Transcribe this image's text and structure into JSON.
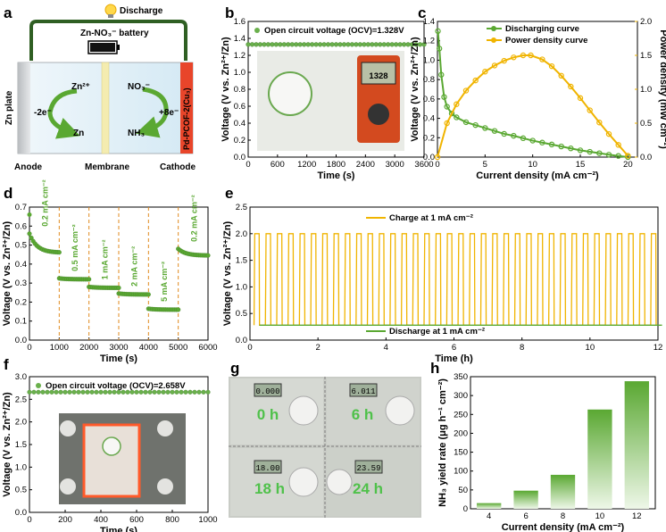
{
  "panels": {
    "a": "a",
    "b": "b",
    "c": "c",
    "d": "d",
    "e": "e",
    "f": "f",
    "g": "g",
    "h": "h"
  },
  "diagram_a": {
    "discharge": "Discharge",
    "battery": "Zn-NO₃⁻ battery",
    "zn_plate": "Zn plate",
    "zn2": "Zn²⁺",
    "zn": "Zn",
    "minus2e": "-2e⁻",
    "no3": "NO₃⁻",
    "nh3": "NH₃",
    "plus8e": "+8e⁻",
    "cathode_label": "Pd-PCOF-2(Cu₃)",
    "anode": "Anode",
    "membrane": "Membrane",
    "cathode": "Cathode"
  },
  "photo_g": {
    "t0": "0 h",
    "t6": "6 h",
    "t18": "18 h",
    "t24": "24 h",
    "meter0": "0.000",
    "meter6": "6.011",
    "meter18": "18.00",
    "meter24": "23.59"
  },
  "chart_data": [
    {
      "panel": "b",
      "type": "scatter",
      "title": "",
      "xlabel": "Time (s)",
      "ylabel": "Voltage (V vs. Zn²⁺/Zn)",
      "xlim": [
        0,
        3600
      ],
      "ylim": [
        0,
        1.6
      ],
      "xticks": [
        0,
        600,
        1200,
        1800,
        2400,
        3000,
        3600
      ],
      "yticks": [
        0.0,
        0.2,
        0.4,
        0.6,
        0.8,
        1.0,
        1.2,
        1.4,
        1.6
      ],
      "legend": "Open circuit voltage (OCV)=1.328V",
      "series": [
        {
          "name": "Open circuit voltage (OCV)=1.328V",
          "x_range": [
            0,
            3600
          ],
          "value": 1.328,
          "color": "#6ab04c"
        }
      ],
      "inset_photo_text": "1328"
    },
    {
      "panel": "c",
      "type": "line",
      "xlabel": "Current density (mA cm⁻²)",
      "ylabel": "Voltage (V vs. Zn²⁺/Zn)",
      "y2label": "Power density (mW cm⁻²)",
      "xlim": [
        0,
        21
      ],
      "ylim": [
        0,
        1.4
      ],
      "y2lim": [
        0,
        2.0
      ],
      "xticks": [
        0,
        5,
        10,
        15,
        20
      ],
      "yticks": [
        0.0,
        0.2,
        0.4,
        0.6,
        0.8,
        1.0,
        1.2,
        1.4
      ],
      "y2ticks": [
        0.0,
        0.5,
        1.0,
        1.5,
        2.0
      ],
      "legend": "top-right",
      "series": [
        {
          "name": "Discharging curve",
          "color": "#5aa832",
          "x": [
            0.05,
            0.2,
            0.4,
            0.7,
            1,
            1.5,
            2,
            3,
            4,
            5,
            6,
            7,
            8,
            9,
            10,
            11,
            12,
            13,
            14,
            15,
            16,
            17,
            18,
            19,
            20
          ],
          "y": [
            1.3,
            1.12,
            0.85,
            0.62,
            0.52,
            0.45,
            0.41,
            0.36,
            0.33,
            0.3,
            0.27,
            0.24,
            0.22,
            0.195,
            0.17,
            0.15,
            0.13,
            0.11,
            0.09,
            0.07,
            0.055,
            0.04,
            0.025,
            0.012,
            0.0
          ]
        },
        {
          "name": "Power density curve",
          "axis": "right",
          "color": "#f0b400",
          "x": [
            0,
            1,
            2,
            3,
            4,
            5,
            6,
            7,
            8,
            9,
            9.8,
            11,
            12,
            13,
            14,
            15,
            16,
            17,
            18,
            19,
            20
          ],
          "y": [
            0,
            0.5,
            0.78,
            0.98,
            1.13,
            1.26,
            1.35,
            1.42,
            1.47,
            1.5,
            1.5,
            1.44,
            1.34,
            1.2,
            1.04,
            0.87,
            0.69,
            0.51,
            0.34,
            0.18,
            0.02
          ]
        }
      ]
    },
    {
      "panel": "d",
      "type": "scatter",
      "xlabel": "Time (s)",
      "ylabel": "Voltage (V vs. Zn²⁺/Zn)",
      "xlim": [
        0,
        6000
      ],
      "ylim": [
        0,
        0.7
      ],
      "xticks": [
        0,
        1000,
        2000,
        3000,
        4000,
        5000,
        6000
      ],
      "yticks": [
        0.0,
        0.1,
        0.2,
        0.3,
        0.4,
        0.5,
        0.6,
        0.7
      ],
      "segments": [
        {
          "label": "0.2 mA cm⁻²",
          "t": [
            0,
            1000
          ],
          "start": 0.56,
          "end": 0.46
        },
        {
          "label": "0.5 mA cm⁻²",
          "t": [
            1000,
            2000
          ],
          "start": 0.325,
          "end": 0.32
        },
        {
          "label": "1 mA cm⁻²",
          "t": [
            2000,
            3000
          ],
          "start": 0.28,
          "end": 0.275
        },
        {
          "label": "2 mA cm⁻²",
          "t": [
            3000,
            4000
          ],
          "start": 0.245,
          "end": 0.24
        },
        {
          "label": "5 mA cm⁻²",
          "t": [
            4000,
            5000
          ],
          "start": 0.165,
          "end": 0.16
        },
        {
          "label": "0.2 mA cm⁻²",
          "t": [
            5000,
            6000
          ],
          "start": 0.48,
          "end": 0.445
        }
      ],
      "first_point": 0.66,
      "color": "#5aa832",
      "divider_color": "#e08a1e"
    },
    {
      "panel": "e",
      "type": "line",
      "xlabel": "Time (h)",
      "ylabel": "Voltage (V vs. Zn²⁺/Zn)",
      "xlim": [
        0,
        12
      ],
      "ylim": [
        0,
        2.5
      ],
      "xticks": [
        0,
        2,
        4,
        6,
        8,
        10,
        12
      ],
      "yticks": [
        0.0,
        0.5,
        1.0,
        1.5,
        2.0,
        2.5
      ],
      "cycles": 36,
      "charge_value": 2.0,
      "discharge_value": 0.28,
      "series": [
        {
          "name": "Charge at 1 mA cm⁻²",
          "color": "#f0b400"
        },
        {
          "name": "Discharge at 1 mA cm⁻²",
          "color": "#5aa832"
        }
      ]
    },
    {
      "panel": "f",
      "type": "scatter",
      "xlabel": "Time (s)",
      "ylabel": "Voltage (V vs. Zn²⁺/Zn)",
      "xlim": [
        0,
        1000
      ],
      "ylim": [
        0,
        3.0
      ],
      "xticks": [
        0,
        200,
        400,
        600,
        800,
        1000
      ],
      "yticks": [
        0.0,
        0.5,
        1.0,
        1.5,
        2.0,
        2.5,
        3.0
      ],
      "legend": "Open circuit voltage (OCV)=2.658V",
      "series": [
        {
          "name": "Open circuit voltage (OCV)=2.658V",
          "value": 2.658,
          "color": "#6ab04c"
        }
      ]
    },
    {
      "panel": "h",
      "type": "bar",
      "xlabel": "Current density (mA cm⁻²)",
      "ylabel": "NH₃ yield rate (μg h⁻¹ cm⁻²)",
      "categories": [
        "4",
        "6",
        "8",
        "10",
        "12"
      ],
      "values": [
        15,
        48,
        90,
        263,
        338
      ],
      "ylim": [
        0,
        350
      ],
      "yticks": [
        0,
        50,
        100,
        150,
        200,
        250,
        300,
        350
      ],
      "color": "#5aa832"
    }
  ]
}
